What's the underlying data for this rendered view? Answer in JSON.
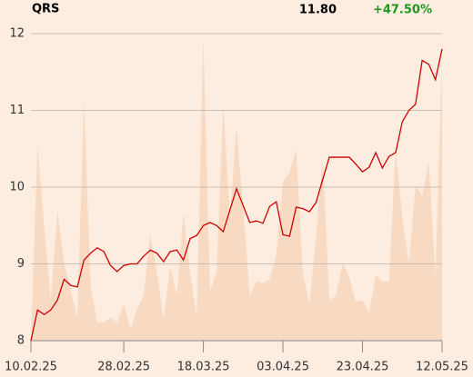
{
  "chart_data": {
    "type": "line",
    "title": "QRS",
    "price": "11.80",
    "change": "+47.50%",
    "change_color": "#1a9a1a",
    "categories": [
      "10.02.25",
      null,
      null,
      null,
      null,
      null,
      null,
      null,
      null,
      null,
      null,
      null,
      null,
      null,
      "28.02.25",
      null,
      null,
      null,
      null,
      null,
      null,
      null,
      null,
      null,
      null,
      null,
      "18.03.25",
      null,
      null,
      null,
      null,
      null,
      null,
      null,
      null,
      null,
      null,
      null,
      "03.04.25",
      null,
      null,
      null,
      null,
      null,
      null,
      null,
      null,
      null,
      null,
      null,
      "23.04.25",
      null,
      null,
      null,
      null,
      null,
      null,
      null,
      null,
      null,
      null,
      null,
      "12.05.25"
    ],
    "series": [
      {
        "type": "area",
        "color": "#f8d9c2",
        "values": [
          8.0,
          10.54,
          9.48,
          8.53,
          9.69,
          9.01,
          8.65,
          8.3,
          11.14,
          8.71,
          8.24,
          8.24,
          8.3,
          8.24,
          8.47,
          8.15,
          8.41,
          8.59,
          9.38,
          8.89,
          8.27,
          8.97,
          8.59,
          9.66,
          8.89,
          8.3,
          11.96,
          8.65,
          8.89,
          11.08,
          9.6,
          10.78,
          9.72,
          8.59,
          8.77,
          8.75,
          8.8,
          9.12,
          10.07,
          10.19,
          10.49,
          8.89,
          8.47,
          9.36,
          10.37,
          8.53,
          8.59,
          9.01,
          8.83,
          8.5,
          8.53,
          8.36,
          8.85,
          8.77,
          8.77,
          10.49,
          9.6,
          9.01,
          10.01,
          9.89,
          10.33,
          8.83,
          11.67
        ]
      },
      {
        "type": "line",
        "color": "#cc0000",
        "values": [
          8.0,
          8.4,
          8.34,
          8.4,
          8.53,
          8.8,
          8.72,
          8.7,
          9.05,
          9.14,
          9.21,
          9.16,
          8.98,
          8.9,
          8.98,
          9.0,
          9.0,
          9.1,
          9.18,
          9.14,
          9.03,
          9.16,
          9.18,
          9.05,
          9.33,
          9.37,
          9.5,
          9.54,
          9.5,
          9.42,
          9.7,
          9.98,
          9.76,
          9.54,
          9.56,
          9.53,
          9.75,
          9.81,
          9.38,
          9.36,
          9.74,
          9.72,
          9.68,
          9.8,
          10.1,
          10.39,
          10.39,
          10.39,
          10.39,
          10.3,
          10.2,
          10.26,
          10.45,
          10.25,
          10.4,
          10.45,
          10.85,
          11.0,
          11.08,
          11.65,
          11.6,
          11.4,
          11.8
        ]
      }
    ],
    "ylim": [
      8,
      12
    ],
    "yticks": [
      8,
      9,
      10,
      11,
      12
    ],
    "grid": true
  }
}
